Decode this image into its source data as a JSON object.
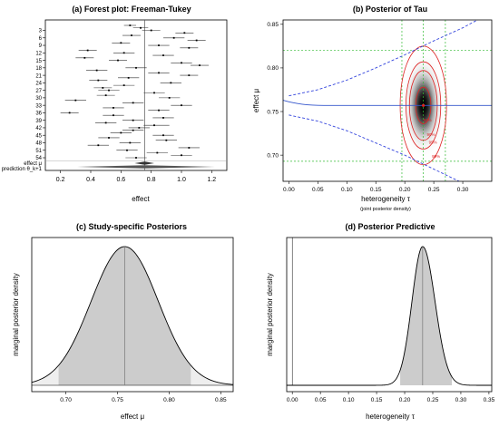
{
  "panels": {
    "a": {
      "title": "(a) Forest plot: Freeman-Tukey",
      "xlabel": "effect",
      "x_ticks": [
        0.2,
        0.4,
        0.6,
        0.8,
        1.0,
        1.2
      ],
      "y_tick_labels": [
        "3",
        "6",
        "9",
        "12",
        "15",
        "18",
        "21",
        "24",
        "27",
        "30",
        "33",
        "36",
        "39",
        "42",
        "45",
        "48",
        "51",
        "54"
      ],
      "summary_labels": [
        "effect μ",
        "prediction θ_k+1"
      ]
    },
    "b": {
      "title": "(b) Posterior of Tau",
      "xlabel": "heterogeneity τ",
      "xsub": "(joint posterior density)",
      "ylabel": "effect μ",
      "x_ticks": [
        0.0,
        0.05,
        0.1,
        0.15,
        0.2,
        0.25,
        0.3
      ],
      "y_ticks": [
        0.7,
        0.75,
        0.8,
        0.85
      ],
      "contour_labels": [
        "50%",
        "90%",
        "95%",
        "99%"
      ]
    },
    "c": {
      "title": "(c) Study-specific Posteriors",
      "xlabel": "effect μ",
      "ylabel": "marginal posterior density",
      "x_ticks": [
        0.7,
        0.75,
        0.8,
        0.85
      ]
    },
    "d": {
      "title": "(d) Posterior Predictive",
      "xlabel": "heterogeneity τ",
      "ylabel": "marginal posterior density",
      "x_ticks": [
        0.0,
        0.05,
        0.1,
        0.15,
        0.2,
        0.25,
        0.3,
        0.35
      ]
    }
  },
  "chart_data": [
    {
      "type": "scatter",
      "title": "(a) Forest plot: Freeman-Tukey",
      "xlabel": "effect",
      "xlim": [
        0.1,
        1.3
      ],
      "studies": [
        {
          "est": 0.66,
          "lo": 0.62,
          "hi": 0.7
        },
        {
          "est": 0.73,
          "lo": 0.68,
          "hi": 0.78
        },
        {
          "est": 0.8,
          "lo": 0.74,
          "hi": 0.86
        },
        {
          "est": 1.02,
          "lo": 0.96,
          "hi": 1.08
        },
        {
          "est": 0.67,
          "lo": 0.61,
          "hi": 0.73
        },
        {
          "est": 0.95,
          "lo": 0.88,
          "hi": 1.02
        },
        {
          "est": 1.1,
          "lo": 1.04,
          "hi": 1.16
        },
        {
          "est": 0.6,
          "lo": 0.54,
          "hi": 0.66
        },
        {
          "est": 0.85,
          "lo": 0.78,
          "hi": 0.92
        },
        {
          "est": 1.05,
          "lo": 0.99,
          "hi": 1.11
        },
        {
          "est": 0.38,
          "lo": 0.32,
          "hi": 0.44
        },
        {
          "est": 0.62,
          "lo": 0.55,
          "hi": 0.69
        },
        {
          "est": 0.88,
          "lo": 0.81,
          "hi": 0.95
        },
        {
          "est": 0.36,
          "lo": 0.3,
          "hi": 0.42
        },
        {
          "est": 0.58,
          "lo": 0.52,
          "hi": 0.64
        },
        {
          "est": 1.0,
          "lo": 0.93,
          "hi": 1.07
        },
        {
          "est": 1.12,
          "lo": 1.06,
          "hi": 1.18
        },
        {
          "est": 0.7,
          "lo": 0.63,
          "hi": 0.77
        },
        {
          "est": 0.44,
          "lo": 0.37,
          "hi": 0.51
        },
        {
          "est": 0.85,
          "lo": 0.78,
          "hi": 0.92
        },
        {
          "est": 1.05,
          "lo": 0.99,
          "hi": 1.11
        },
        {
          "est": 0.65,
          "lo": 0.58,
          "hi": 0.72
        },
        {
          "est": 0.45,
          "lo": 0.39,
          "hi": 0.51
        },
        {
          "est": 0.93,
          "lo": 0.86,
          "hi": 1.0
        },
        {
          "est": 0.62,
          "lo": 0.55,
          "hi": 0.69
        },
        {
          "est": 0.48,
          "lo": 0.42,
          "hi": 0.54
        },
        {
          "est": 0.52,
          "lo": 0.45,
          "hi": 0.59
        },
        {
          "est": 0.82,
          "lo": 0.75,
          "hi": 0.89
        },
        {
          "est": 0.5,
          "lo": 0.44,
          "hi": 0.56
        },
        {
          "est": 0.92,
          "lo": 0.85,
          "hi": 0.99
        },
        {
          "est": 0.3,
          "lo": 0.23,
          "hi": 0.37
        },
        {
          "est": 0.68,
          "lo": 0.61,
          "hi": 0.75
        },
        {
          "est": 1.0,
          "lo": 0.93,
          "hi": 1.07
        },
        {
          "est": 0.55,
          "lo": 0.48,
          "hi": 0.62
        },
        {
          "est": 0.85,
          "lo": 0.78,
          "hi": 0.92
        },
        {
          "est": 0.26,
          "lo": 0.2,
          "hi": 0.32
        },
        {
          "est": 0.55,
          "lo": 0.48,
          "hi": 0.62
        },
        {
          "est": 0.88,
          "lo": 0.81,
          "hi": 0.95
        },
        {
          "est": 0.68,
          "lo": 0.61,
          "hi": 0.75
        },
        {
          "est": 0.5,
          "lo": 0.43,
          "hi": 0.57
        },
        {
          "est": 0.82,
          "lo": 0.75,
          "hi": 0.92
        },
        {
          "est": 0.72,
          "lo": 0.65,
          "hi": 0.79
        },
        {
          "est": 0.68,
          "lo": 0.61,
          "hi": 0.75
        },
        {
          "est": 0.6,
          "lo": 0.53,
          "hi": 0.67
        },
        {
          "est": 0.88,
          "lo": 0.81,
          "hi": 0.95
        },
        {
          "est": 0.52,
          "lo": 0.45,
          "hi": 0.59
        },
        {
          "est": 0.9,
          "lo": 0.83,
          "hi": 0.97
        },
        {
          "est": 0.66,
          "lo": 0.59,
          "hi": 0.73
        },
        {
          "est": 0.45,
          "lo": 0.38,
          "hi": 0.52
        },
        {
          "est": 1.05,
          "lo": 0.98,
          "hi": 1.12
        },
        {
          "est": 0.64,
          "lo": 0.57,
          "hi": 0.71
        },
        {
          "est": 0.84,
          "lo": 0.77,
          "hi": 0.91
        },
        {
          "est": 1.0,
          "lo": 0.93,
          "hi": 1.07
        },
        {
          "est": 0.7,
          "lo": 0.63,
          "hi": 0.77
        }
      ],
      "summary_effect": {
        "est": 0.757,
        "lo": 0.69,
        "hi": 0.82
      },
      "prediction": {
        "est": 0.757,
        "lo": 0.31,
        "hi": 1.22
      },
      "reference_line": 0.757
    },
    {
      "type": "heatmap",
      "title": "(b) Posterior of Tau",
      "xlabel": "heterogeneity τ",
      "ylabel": "effect μ",
      "xlim": [
        -0.01,
        0.35
      ],
      "ylim": [
        0.67,
        0.855
      ],
      "mode": {
        "tau": 0.232,
        "mu": 0.757
      },
      "tau_ci": [
        0.195,
        0.27
      ],
      "mu_ci": [
        0.693,
        0.82
      ],
      "contours": [
        {
          "label": "50%",
          "tau_halfwidth": 0.013,
          "mu_halfwidth": 0.021
        },
        {
          "label": "90%",
          "tau_halfwidth": 0.024,
          "mu_halfwidth": 0.04
        },
        {
          "label": "95%",
          "tau_halfwidth": 0.03,
          "mu_halfwidth": 0.05
        },
        {
          "label": "99%",
          "tau_halfwidth": 0.04,
          "mu_halfwidth": 0.068
        }
      ],
      "prediction_band_upper": [
        [
          0.0,
          0.768
        ],
        [
          0.05,
          0.775
        ],
        [
          0.1,
          0.786
        ],
        [
          0.15,
          0.8
        ],
        [
          0.2,
          0.815
        ],
        [
          0.25,
          0.831
        ],
        [
          0.3,
          0.846
        ],
        [
          0.345,
          0.862
        ]
      ],
      "prediction_band_lower": [
        [
          0.0,
          0.746
        ],
        [
          0.05,
          0.739
        ],
        [
          0.1,
          0.728
        ],
        [
          0.15,
          0.714
        ],
        [
          0.2,
          0.7
        ],
        [
          0.25,
          0.684
        ],
        [
          0.3,
          0.668
        ],
        [
          0.345,
          0.652
        ]
      ],
      "conditional_mean": 0.757
    },
    {
      "type": "area",
      "title": "(c) Study-specific Posteriors",
      "xlabel": "effect μ",
      "ylabel": "marginal posterior density",
      "xlim": [
        0.667,
        0.862
      ],
      "mean": 0.757,
      "sd": 0.0325,
      "ci": [
        0.693,
        0.821
      ]
    },
    {
      "type": "area",
      "title": "(d) Posterior Predictive",
      "xlabel": "heterogeneity τ",
      "ylabel": "marginal posterior density",
      "xlim": [
        -0.01,
        0.355
      ],
      "mode": 0.232,
      "sd_left": 0.019,
      "sd_right": 0.022,
      "ci": [
        0.192,
        0.284
      ],
      "median": 0.232
    }
  ]
}
